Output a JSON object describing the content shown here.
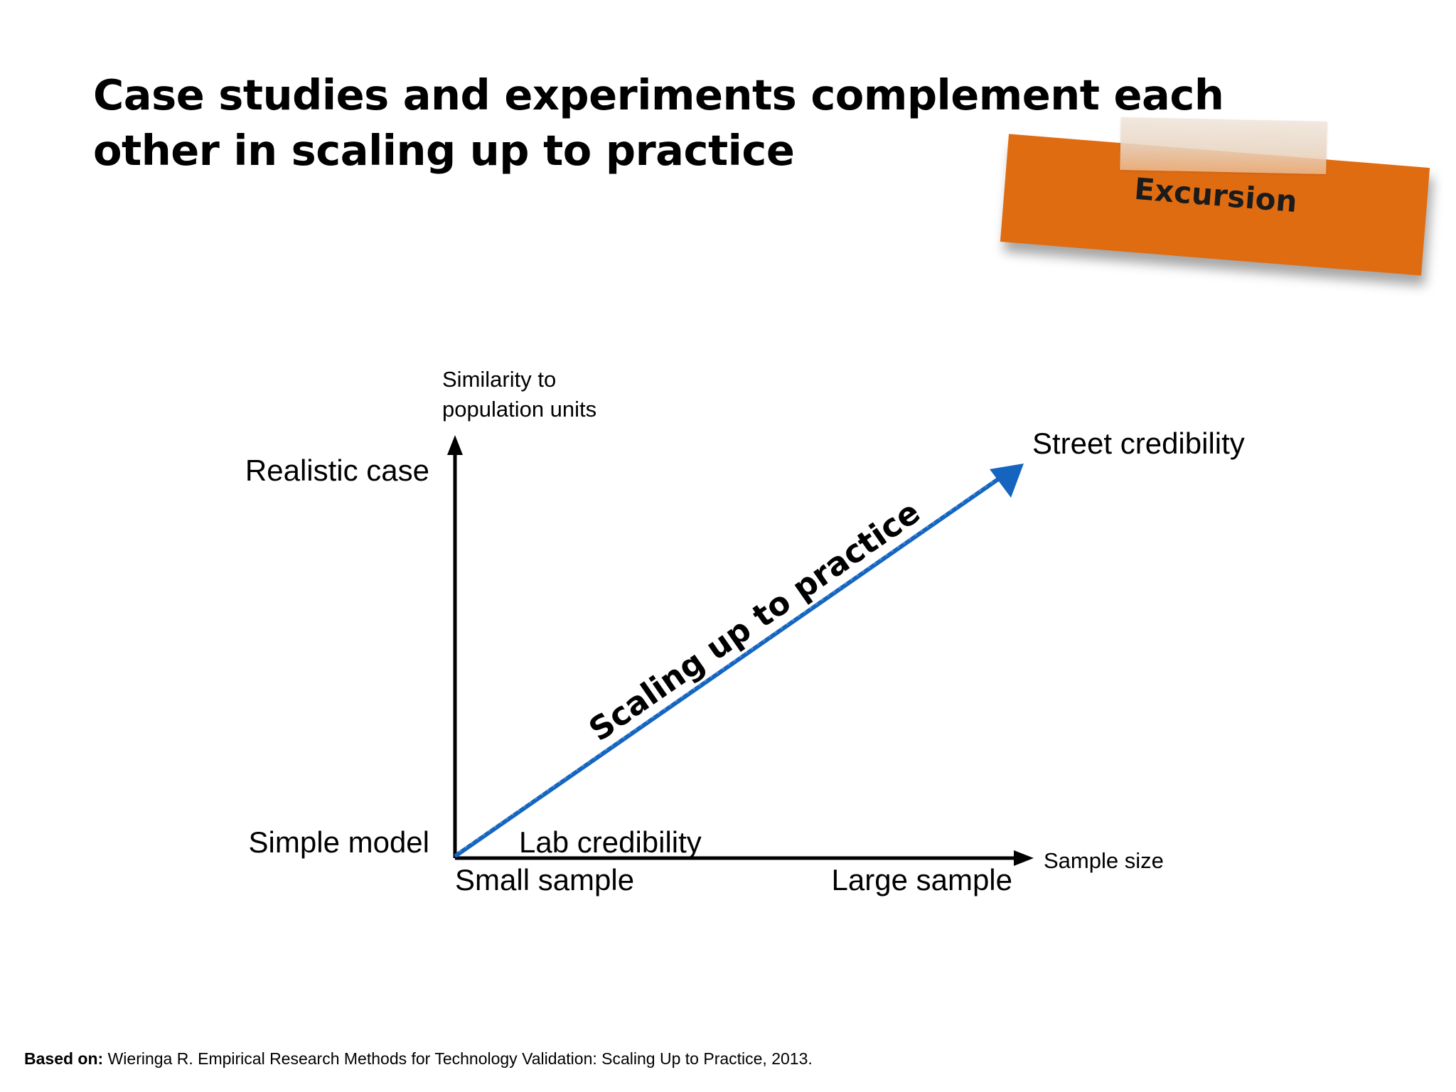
{
  "slide": {
    "title_line1": "Case studies and experiments complement each",
    "title_line2": "other in scaling up to practice",
    "sticky_note_label": "Excursion"
  },
  "diagram": {
    "y_axis_label_line1": "Similarity to",
    "y_axis_label_line2": "population units",
    "x_axis_label": "Sample size",
    "y_top_label": "Realistic case",
    "y_bottom_label": "Simple model",
    "x_left_label": "Small sample",
    "x_right_label": "Large sample",
    "origin_label": "Lab credibility",
    "end_label": "Street credibility",
    "arrow_label": "Scaling up to practice",
    "arrow_color": "#1565c0",
    "axis_color": "#000000",
    "note_color": "#e06c12"
  },
  "footnote": {
    "prefix": "Based on:",
    "text": " Wieringa R. Empirical Research Methods for Technology Validation: Scaling Up to Practice, 2013."
  }
}
